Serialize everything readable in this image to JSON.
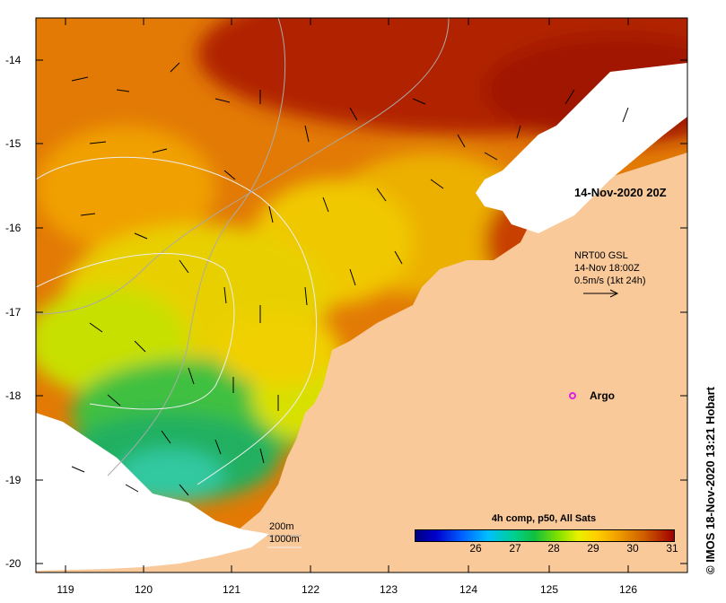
{
  "map": {
    "lat_ticks": [
      "-14",
      "-15",
      "-16",
      "-17",
      "-18",
      "-19",
      "-20"
    ],
    "lon_ticks": [
      "119",
      "120",
      "121",
      "122",
      "123",
      "124",
      "125",
      "126"
    ],
    "timestamp_label": "14-Nov-2020 20Z",
    "current_legend": {
      "line1": "NRT00 GSL",
      "line2": "14-Nov 18:00Z",
      "line3": "0.5m/s (1kt 24h)"
    },
    "argo_label": "Argo",
    "bathymetry": {
      "contour_200": "200m",
      "contour_1000": "1000m"
    },
    "colorbar": {
      "title": "4h comp, p50, All Sats",
      "ticks": [
        "26",
        "27",
        "28",
        "29",
        "30",
        "31"
      ]
    },
    "credit": "© IMOS 18-Nov-2020 13:21 Hobart",
    "colors": {
      "land": "#f9c99a",
      "cloud": "#ffffff",
      "argo": "#e020e0"
    }
  }
}
